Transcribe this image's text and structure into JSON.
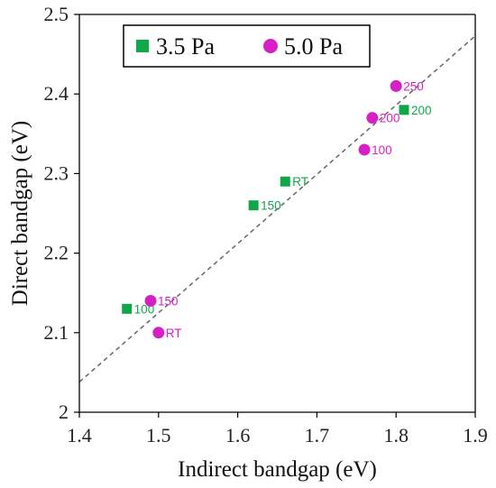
{
  "chart_data": {
    "type": "scatter",
    "title": "",
    "xlabel": "Indirect bandgap (eV)",
    "ylabel": "Direct bandgap (eV)",
    "xlim": [
      1.4,
      1.9
    ],
    "ylim": [
      2.0,
      2.5
    ],
    "x_ticks": [
      "1.4",
      "1.5",
      "1.6",
      "1.7",
      "1.8",
      "1.9"
    ],
    "y_ticks": [
      "2",
      "2.1",
      "2.2",
      "2.3",
      "2.4",
      "2.5"
    ],
    "grid": false,
    "legend_position": "top-left",
    "series": [
      {
        "name": "3.5 Pa",
        "marker": "square",
        "color": "#10a64a",
        "points": [
          {
            "x": 1.46,
            "y": 2.13,
            "label": "100"
          },
          {
            "x": 1.62,
            "y": 2.26,
            "label": "150"
          },
          {
            "x": 1.66,
            "y": 2.29,
            "label": "RT"
          },
          {
            "x": 1.81,
            "y": 2.38,
            "label": "200"
          }
        ]
      },
      {
        "name": "5.0 Pa",
        "marker": "circle",
        "color": "#d61fc4",
        "points": [
          {
            "x": 1.49,
            "y": 2.14,
            "label": "150"
          },
          {
            "x": 1.5,
            "y": 2.1,
            "label": "RT"
          },
          {
            "x": 1.76,
            "y": 2.33,
            "label": "100"
          },
          {
            "x": 1.77,
            "y": 2.37,
            "label": "200"
          },
          {
            "x": 1.8,
            "y": 2.41,
            "label": "250"
          }
        ]
      }
    ],
    "trendline": {
      "style": "dashed",
      "color": "#666666",
      "x": [
        1.4,
        1.9
      ],
      "y": [
        2.038,
        2.473
      ]
    }
  }
}
